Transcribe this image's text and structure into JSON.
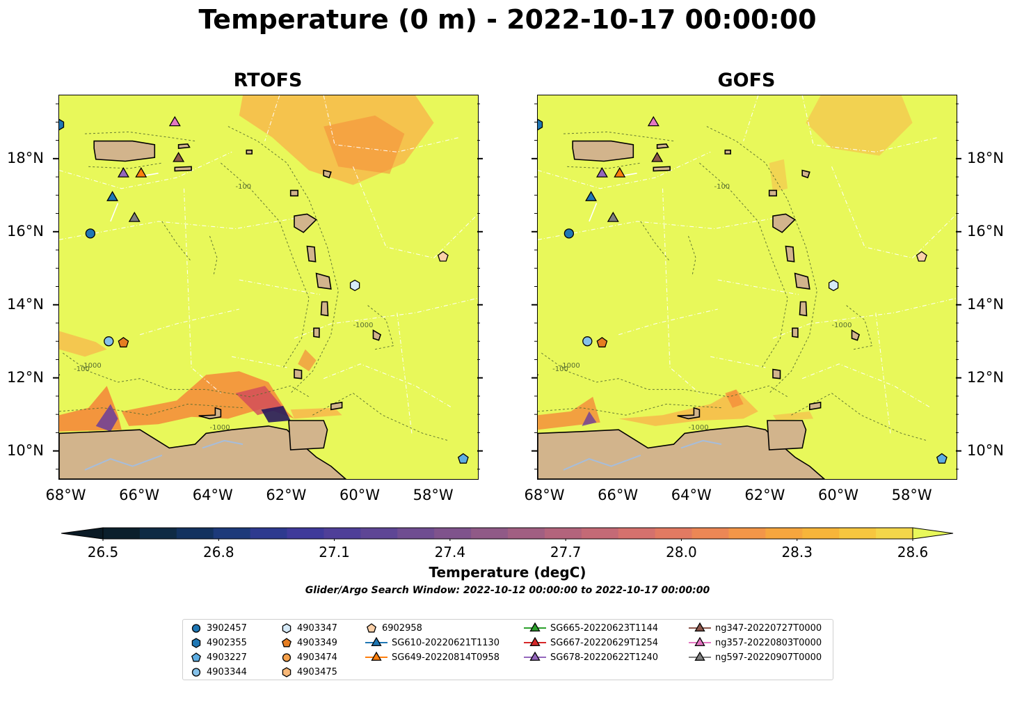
{
  "figure": {
    "title": "Temperature (0 m) - 2022-10-17 00:00:00",
    "panels": [
      {
        "title": "RTOFS",
        "model": "rtofs"
      },
      {
        "title": "GOFS",
        "model": "gofs"
      }
    ],
    "lon_labels": [
      "68°W",
      "66°W",
      "64°W",
      "62°W",
      "60°W",
      "58°W"
    ],
    "lat_labels": [
      "18°N",
      "16°N",
      "14°N",
      "12°N",
      "10°N"
    ],
    "colors": {
      "land": "#d2b48c",
      "sea_warm": "#e8f85a",
      "river": "#a6bddb"
    }
  },
  "chart_data": {
    "type": "heatmap",
    "variable": "Temperature",
    "depth": "0 m",
    "time": "2022-10-17 00:00:00",
    "extent": {
      "lon": [
        -68.2,
        -56.8
      ],
      "lat": [
        9.25,
        19.75
      ]
    },
    "colorbar": {
      "label": "Temperature (degC)",
      "ticks": [
        26.5,
        26.8,
        27.1,
        27.4,
        27.7,
        28.0,
        28.3,
        28.6
      ],
      "tick_labels": [
        "26.5",
        "26.8",
        "27.1",
        "27.4",
        "27.7",
        "28.0",
        "28.3",
        "28.6"
      ],
      "range": [
        26.5,
        28.6
      ],
      "extend": "both"
    },
    "contour_labels": [
      "-100",
      "-1000"
    ],
    "search_window": "Glider/Argo Search Window: 2022-10-12 00:00:00 to 2022-10-17 00:00:00"
  },
  "legend": {
    "items": [
      {
        "label": "3902457",
        "marker": "circle",
        "color": "#1f77b4",
        "lon": -67.35,
        "lat": 15.97
      },
      {
        "label": "4902355",
        "marker": "hexagon",
        "color": "#1f77b4",
        "lon": -68.2,
        "lat": 18.95
      },
      {
        "label": "4903227",
        "marker": "pentagon",
        "color": "#5dade2",
        "lon": -57.2,
        "lat": 9.8
      },
      {
        "label": "4903344",
        "marker": "circle",
        "color": "#85c1e9",
        "lon": -66.85,
        "lat": 13.02
      },
      {
        "label": "4903347",
        "marker": "hexagon",
        "color": "#d6eaf8",
        "lon": -60.15,
        "lat": 14.55
      },
      {
        "label": "4903349",
        "marker": "pentagon",
        "color": "#e67e22",
        "lon": -66.45,
        "lat": 12.98
      },
      {
        "label": "4903474",
        "marker": "circle",
        "color": "#f5a04a",
        "lon": null,
        "lat": null
      },
      {
        "label": "4903475",
        "marker": "hexagon",
        "color": "#f8b878",
        "lon": null,
        "lat": null
      },
      {
        "label": "6902958",
        "marker": "pentagon",
        "color": "#fbd0a8",
        "lon": -57.75,
        "lat": 15.33
      },
      {
        "label": "SG610-20220621T1130",
        "marker": "triangle",
        "color": "#1f77b4",
        "line": "#1f77b4",
        "lon": -66.75,
        "lat": 16.95
      },
      {
        "label": "SG649-20220814T0958",
        "marker": "triangle",
        "color": "#ff7f0e",
        "line": "#ff7f0e",
        "lon": -65.97,
        "lat": 17.6
      },
      {
        "label": "SG665-20220623T1144",
        "marker": "triangle",
        "color": "#2ca02c",
        "line": "#2ca02c",
        "lon": null,
        "lat": null
      },
      {
        "label": "SG667-20220629T1254",
        "marker": "triangle",
        "color": "#d62728",
        "line": "#d62728",
        "lon": null,
        "lat": null
      },
      {
        "label": "SG678-20220622T1240",
        "marker": "triangle",
        "color": "#9467bd",
        "line": "#9467bd",
        "lon": -66.45,
        "lat": 17.6
      },
      {
        "label": "ng347-20220727T0000",
        "marker": "triangle",
        "color": "#8c564b",
        "line": "#8c564b",
        "lon": -64.95,
        "lat": 18.02
      },
      {
        "label": "ng357-20220803T0000",
        "marker": "triangle",
        "color": "#e377c2",
        "line": "#e377c2",
        "lon": -65.05,
        "lat": 19.0
      },
      {
        "label": "ng597-20220907T0000",
        "marker": "triangle",
        "color": "#7f7f7f",
        "line": "#7f7f7f",
        "lon": -66.15,
        "lat": 16.38
      }
    ]
  }
}
